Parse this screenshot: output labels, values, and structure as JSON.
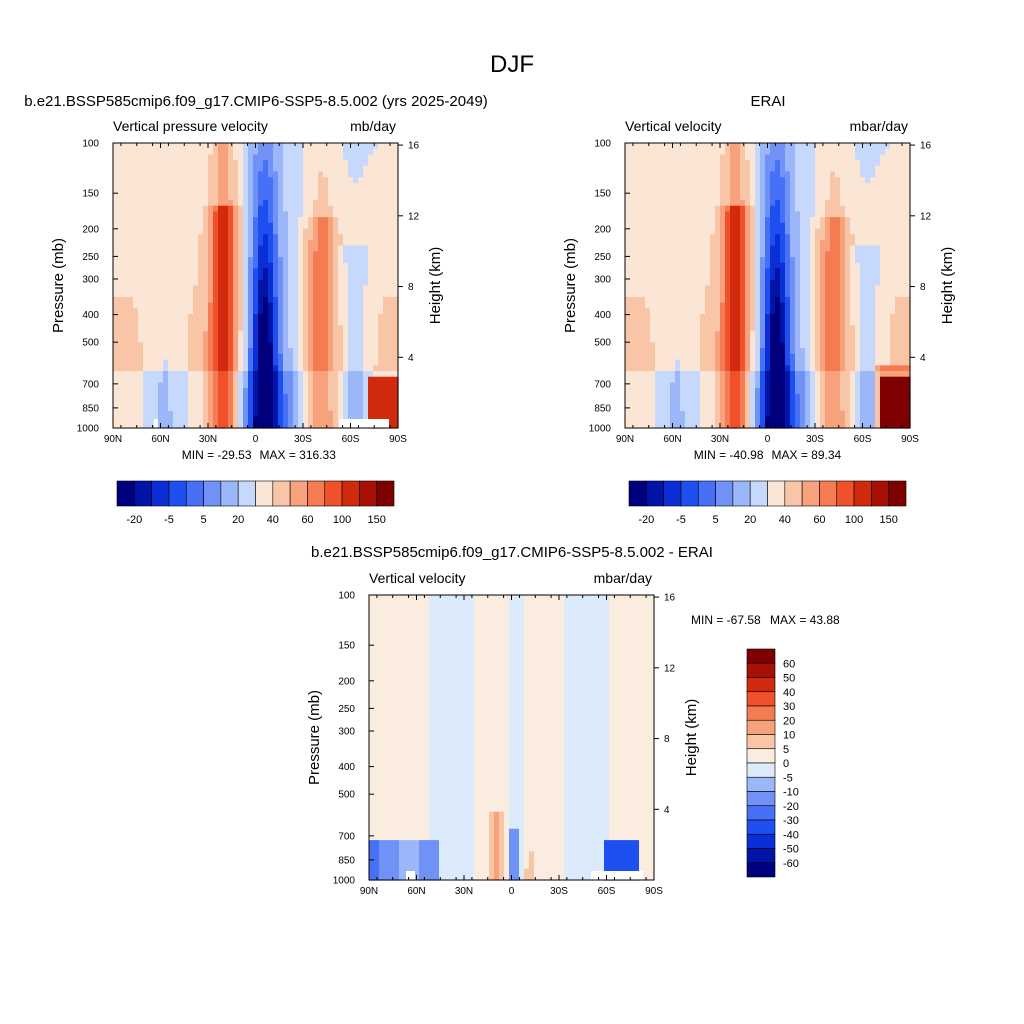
{
  "figure_title": "DJF",
  "colors": {
    "seq": [
      "#00007f",
      "#0014a8",
      "#0a2fd6",
      "#1e4ff0",
      "#4670f5",
      "#7092f7",
      "#9cb6fa",
      "#c6d9fc",
      "#fbe6d6",
      "#f9c5a7",
      "#f7a27c",
      "#f57c52",
      "#f0502a",
      "#d22a0c",
      "#a61006",
      "#7f0000"
    ],
    "diff": [
      "#00007f",
      "#0014a8",
      "#0a2fd6",
      "#1e4ff0",
      "#4670f5",
      "#7092f7",
      "#9cb6fa",
      "#dcebfc",
      "#fbece0",
      "#f9c5a7",
      "#f7a27c",
      "#f57c52",
      "#f0502a",
      "#d22a0c",
      "#a61006",
      "#7f0000"
    ]
  },
  "chart_data": [
    {
      "type": "heatmap",
      "title": "b.e21.BSSP585cmip6.f09_g17.CMIP6-SSP5-8.5.002 (yrs 2025-2049)",
      "variable": "Vertical pressure velocity",
      "units": "mb/day",
      "ylabel": "Pressure (mb)",
      "ylabel_right": "Height (km)",
      "x_ticks": [
        "90N",
        "60N",
        "30N",
        "0",
        "30S",
        "60S",
        "90S"
      ],
      "xlim": [
        90,
        -90
      ],
      "y_ticks": [
        100,
        150,
        200,
        250,
        300,
        400,
        500,
        700,
        850,
        1000
      ],
      "ylim": [
        100,
        1000
      ],
      "y_scale": "log",
      "height_ticks": [
        16,
        12,
        8,
        4
      ],
      "min_label": "MIN = -29.53",
      "max_label": "MAX = 316.33",
      "colorbar": {
        "orientation": "horizontal",
        "labels": [
          "-20",
          "-5",
          "5",
          "20",
          "40",
          "60",
          "100",
          "150"
        ],
        "bins": 16
      }
    },
    {
      "type": "heatmap",
      "title": "ERAI",
      "variable": "Vertical velocity",
      "units": "mbar/day",
      "ylabel": "Pressure (mb)",
      "ylabel_right": "Height (km)",
      "x_ticks": [
        "90N",
        "60N",
        "30N",
        "0",
        "30S",
        "60S",
        "90S"
      ],
      "xlim": [
        90,
        -90
      ],
      "y_ticks": [
        100,
        150,
        200,
        250,
        300,
        400,
        500,
        700,
        850,
        1000
      ],
      "ylim": [
        100,
        1000
      ],
      "y_scale": "log",
      "height_ticks": [
        16,
        12,
        8,
        4
      ],
      "min_label": "MIN = -40.98",
      "max_label": "MAX =  89.34",
      "colorbar": {
        "orientation": "horizontal",
        "labels": [
          "-20",
          "-5",
          "5",
          "20",
          "40",
          "60",
          "100",
          "150"
        ],
        "bins": 16
      }
    },
    {
      "type": "heatmap",
      "title": "b.e21.BSSP585cmip6.f09_g17.CMIP6-SSP5-8.5.002 - ERAI",
      "variable": "Vertical velocity",
      "units": "mbar/day",
      "ylabel": "Pressure (mb)",
      "ylabel_right": "Height (km)",
      "x_ticks": [
        "90N",
        "60N",
        "30N",
        "0",
        "30S",
        "60S",
        "90S"
      ],
      "xlim": [
        90,
        -90
      ],
      "y_ticks": [
        100,
        150,
        200,
        250,
        300,
        400,
        500,
        700,
        850,
        1000
      ],
      "ylim": [
        100,
        1000
      ],
      "y_scale": "log",
      "height_ticks": [
        16,
        12,
        8,
        4
      ],
      "min_label": "MIN = -67.58",
      "max_label": "MAX =  43.88",
      "colorbar": {
        "orientation": "vertical",
        "labels": [
          "60",
          "50",
          "40",
          "30",
          "20",
          "10",
          "5",
          "0",
          "-5",
          "-10",
          "-20",
          "-30",
          "-40",
          "-50",
          "-60"
        ],
        "bins": 16
      }
    }
  ]
}
